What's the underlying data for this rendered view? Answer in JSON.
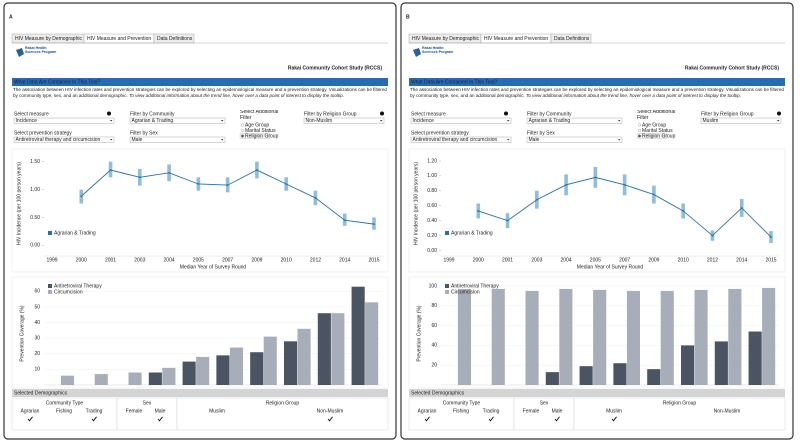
{
  "panels": [
    {
      "label": "A",
      "tabs": [
        "HIV Measure by Demographic",
        "HIV Measure and Prevention",
        "Data Definitions"
      ],
      "logo": "Rakai Health Sciences Program",
      "title": "Rakai Community Cohort Study (RCCS)",
      "section_heading": "What Data Are Contained In This Tool?",
      "intro": "The association between HIV infection rates and prevention strategies can be explored by selecting an epidemiological measure and a prevention strategy. Visualizations can be filtered by community type, sex, and an additional demographic.",
      "intro_italic": "To view additional information about the trend line, hover over a data point of interest to display the tooltip.",
      "filters": [
        {
          "label": "Select measure",
          "value": "Incidence"
        },
        {
          "label": "Filter by Community",
          "value": "Agrarian & Trading"
        },
        {
          "label": "Select prevention strategy",
          "value": "Antiretroviral therapy and circumcision"
        },
        {
          "label": "Filter by Sex",
          "value": "Male"
        },
        {
          "label": "Filter by Religion Group",
          "value": "Non-Muslim"
        }
      ],
      "additional_filter": {
        "label": "Select Additional Filter",
        "options": [
          "Age Group",
          "Marital Status",
          "Religion Group"
        ],
        "selected": 2
      },
      "line_chart": {
        "type": "line",
        "y_label": "HIV Incidence (per 100 person years)",
        "x_label": "Median Year of Survey Round",
        "categories": [
          "1999",
          "2000",
          "2001",
          "2003",
          "2004",
          "2005",
          "2007",
          "2009",
          "2010",
          "2012",
          "2014",
          "2015"
        ],
        "series": [
          {
            "name": "Agrarian & Trading",
            "color": "#2b6fa3",
            "error_color": "#8fbddb",
            "values": [
              null,
              0.88,
              1.35,
              1.22,
              1.3,
              1.1,
              1.08,
              1.35,
              1.1,
              0.85,
              0.45,
              0.38
            ],
            "lower": [
              null,
              0.75,
              1.22,
              1.07,
              1.15,
              0.98,
              0.95,
              1.2,
              0.98,
              0.72,
              0.35,
              0.28
            ],
            "upper": [
              null,
              1.0,
              1.5,
              1.37,
              1.45,
              1.22,
              1.22,
              1.5,
              1.22,
              0.98,
              0.57,
              0.5
            ]
          }
        ],
        "ylim": [
          -0.12,
          1.62
        ],
        "yticks": [
          {
            "value": 0,
            "label": "0.00"
          },
          {
            "value": 0.5,
            "label": "0.50"
          },
          {
            "value": 1,
            "label": "1.00"
          },
          {
            "value": 1.5,
            "label": "1.50"
          }
        ]
      },
      "bar_chart": {
        "type": "bar",
        "y_label": "Prevention Coverage (%)",
        "series": [
          {
            "name": "Antiretroviral Therapy",
            "color": "#4b5462",
            "values": [
              0,
              0,
              0,
              8,
              15,
              19,
              21,
              28,
              46,
              63
            ]
          },
          {
            "name": "Circumcision",
            "color": "#a8aeb9",
            "values": [
              6,
              7,
              8,
              11,
              18,
              24,
              31,
              36,
              46,
              53
            ]
          }
        ],
        "ylim": [
          0,
          66
        ],
        "yticks": [
          10,
          20,
          30,
          40,
          50,
          60
        ]
      },
      "demographics": {
        "title": "Selected Demographics",
        "groups": [
          {
            "name": "Community Type",
            "options": [
              "Agrarian",
              "Fishing",
              "Trading"
            ],
            "checked": [
              true,
              false,
              true
            ]
          },
          {
            "name": "Sex",
            "options": [
              "Female",
              "Male"
            ],
            "checked": [
              false,
              true
            ]
          },
          {
            "name": "Religion Group",
            "options": [
              "Muslim",
              "Non-Muslim"
            ],
            "checked": [
              false,
              true
            ]
          }
        ]
      }
    },
    {
      "label": "B",
      "tabs": [
        "HIV Measure by Demographic",
        "HIV Measure and Prevention",
        "Data Definitions"
      ],
      "logo": "Rakai Health Sciences Program",
      "title": "Rakai Community Cohort Study (RCCS)",
      "section_heading": "What Data Are Contained In This Tool?",
      "intro": "The association between HIV infection rates and prevention strategies can be explored by selecting an epidemiological measure and a prevention strategy. Visualizations can be filtered by community type, sex, and an additional demographic.",
      "intro_italic": "To view additional information about the trend line, hover over a data point of interest to display the tooltip.",
      "filters": [
        {
          "label": "Select measure",
          "value": "Incidence"
        },
        {
          "label": "Filter by Community",
          "value": "Agrarian & Trading"
        },
        {
          "label": "Select prevention strategy",
          "value": "Antiretroviral therapy and circumcision"
        },
        {
          "label": "Filter by Sex",
          "value": "Male"
        },
        {
          "label": "Filter by Religion Group",
          "value": "Muslim"
        }
      ],
      "additional_filter": {
        "label": "Select Additional Filter",
        "options": [
          "Age Group",
          "Marital Status",
          "Religion Group"
        ],
        "selected": 2
      },
      "line_chart": {
        "type": "line",
        "y_label": "HIV Incidence (per 100 person years)",
        "x_label": "Median Year of Survey Round",
        "categories": [
          "1999",
          "2000",
          "2001",
          "2003",
          "2004",
          "2005",
          "2007",
          "2009",
          "2010",
          "2012",
          "2014",
          "2015"
        ],
        "series": [
          {
            "name": "Agrarian & Trading",
            "color": "#2b6fa3",
            "error_color": "#8fbddb",
            "values": [
              null,
              0.53,
              0.4,
              0.68,
              0.88,
              0.98,
              0.88,
              0.75,
              0.53,
              0.2,
              0.57,
              0.18
            ],
            "lower": [
              null,
              0.43,
              0.3,
              0.56,
              0.74,
              0.84,
              0.74,
              0.63,
              0.43,
              0.13,
              0.45,
              0.1
            ],
            "upper": [
              null,
              0.63,
              0.5,
              0.8,
              1.02,
              1.12,
              1.02,
              0.87,
              0.63,
              0.27,
              0.69,
              0.26
            ]
          }
        ],
        "ylim": [
          -0.02,
          1.28
        ],
        "yticks": [
          {
            "value": 0,
            "label": "0.00"
          },
          {
            "value": 0.2,
            "label": "0.20"
          },
          {
            "value": 0.4,
            "label": "0.40"
          },
          {
            "value": 0.6,
            "label": "0.60"
          },
          {
            "value": 0.8,
            "label": "0.80"
          },
          {
            "value": 1,
            "label": "1.00"
          },
          {
            "value": 1.2,
            "label": "1.20"
          }
        ]
      },
      "bar_chart": {
        "type": "bar",
        "y_label": "Prevention Coverage (%)",
        "series": [
          {
            "name": "Antiretroviral Therapy",
            "color": "#4b5462",
            "values": [
              0,
              0,
              0,
              13,
              19,
              22,
              16,
              40,
              44,
              54
            ]
          },
          {
            "name": "Circumcision",
            "color": "#a8aeb9",
            "values": [
              97,
              97,
              95,
              97,
              96,
              95,
              95,
              96,
              97,
              98
            ]
          }
        ],
        "ylim": [
          0,
          104
        ],
        "yticks": [
          20,
          40,
          60,
          80,
          100
        ]
      },
      "demographics": {
        "title": "Selected Demographics",
        "groups": [
          {
            "name": "Community Type",
            "options": [
              "Agrarian",
              "Fishing",
              "Trading"
            ],
            "checked": [
              true,
              false,
              true
            ]
          },
          {
            "name": "Sex",
            "options": [
              "Female",
              "Male"
            ],
            "checked": [
              false,
              true
            ]
          },
          {
            "name": "Religion Group",
            "options": [
              "Muslim",
              "Non-Muslim"
            ],
            "checked": [
              true,
              false
            ]
          }
        ]
      }
    }
  ]
}
